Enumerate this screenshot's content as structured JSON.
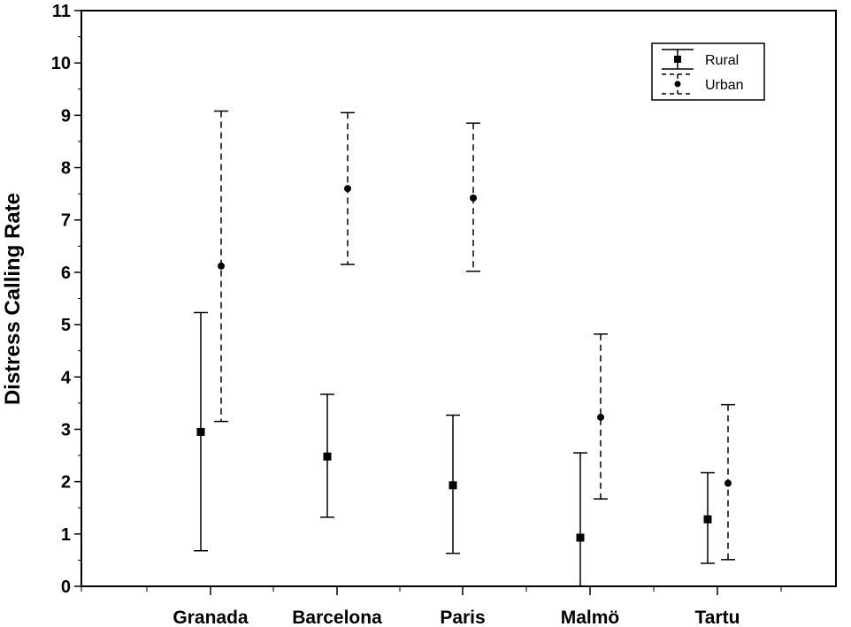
{
  "chart_data": {
    "type": "scatter",
    "title": "",
    "xlabel": "",
    "ylabel": "Distress Calling Rate",
    "ylim": [
      0,
      11
    ],
    "yticks": [
      0,
      1,
      2,
      3,
      4,
      5,
      6,
      7,
      8,
      9,
      10,
      11
    ],
    "categories": [
      "Granada",
      "Barcelona",
      "Paris",
      "Malmö",
      "Tartu"
    ],
    "grid": false,
    "legend_position": "top-right",
    "series": [
      {
        "name": "Rural",
        "marker": "square",
        "line_style": "solid",
        "values": [
          2.95,
          2.48,
          1.93,
          0.93,
          1.28
        ],
        "error_low": [
          0.68,
          1.32,
          0.63,
          0.0,
          0.44
        ],
        "error_high": [
          5.23,
          3.67,
          3.27,
          2.55,
          2.17
        ]
      },
      {
        "name": "Urban",
        "marker": "circle",
        "line_style": "dashed",
        "values": [
          6.12,
          7.6,
          7.42,
          3.23,
          1.97
        ],
        "error_low": [
          3.15,
          6.15,
          6.02,
          1.67,
          0.51
        ],
        "error_high": [
          9.08,
          9.05,
          8.85,
          4.82,
          3.47
        ]
      }
    ]
  }
}
